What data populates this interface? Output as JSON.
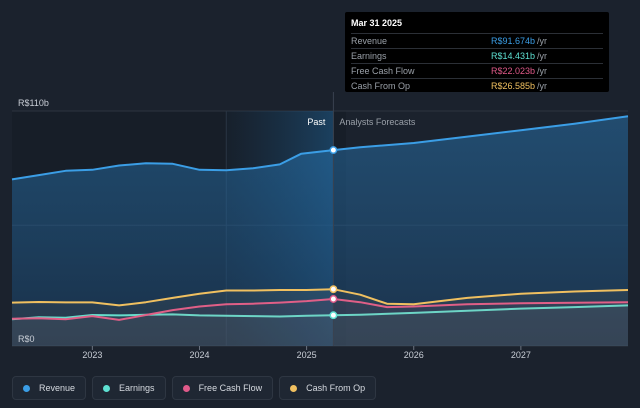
{
  "chart_data": {
    "type": "area",
    "currency_unit": "R$",
    "y_axis": {
      "min_label": "R$0",
      "max_label": "R$110b",
      "ylim": [
        0,
        110
      ]
    },
    "x_ticks": [
      "2023",
      "2024",
      "2025",
      "2026",
      "2027"
    ],
    "region_labels": {
      "past": "Past",
      "forecast": "Analysts Forecasts"
    },
    "divider_x": 2025.25,
    "highlight_band": [
      2024.25,
      2025.25
    ],
    "xlim": [
      2022.25,
      2028.0
    ],
    "series": [
      {
        "name": "Revenue",
        "color": "#3b9ee6",
        "fill": true,
        "points": [
          [
            2022.25,
            78
          ],
          [
            2022.5,
            80
          ],
          [
            2022.75,
            82
          ],
          [
            2023.0,
            82.5
          ],
          [
            2023.25,
            84.5
          ],
          [
            2023.5,
            85.5
          ],
          [
            2023.75,
            85.3
          ],
          [
            2024.0,
            82.5
          ],
          [
            2024.25,
            82.3
          ],
          [
            2024.5,
            83.2
          ],
          [
            2024.75,
            85
          ],
          [
            2024.95,
            90
          ],
          [
            2025.25,
            91.7
          ],
          [
            2025.5,
            93
          ],
          [
            2026.0,
            95
          ],
          [
            2026.5,
            98
          ],
          [
            2027.0,
            101
          ],
          [
            2027.5,
            104
          ],
          [
            2028.0,
            107.5
          ]
        ]
      },
      {
        "name": "Earnings",
        "color": "#5ee0d2",
        "fill": false,
        "points": [
          [
            2022.25,
            12.5
          ],
          [
            2022.5,
            13.5
          ],
          [
            2022.75,
            13.2
          ],
          [
            2023.0,
            14.5
          ],
          [
            2023.25,
            14.3
          ],
          [
            2023.5,
            14.6
          ],
          [
            2023.75,
            14.8
          ],
          [
            2024.0,
            14.3
          ],
          [
            2024.25,
            14.2
          ],
          [
            2024.5,
            14
          ],
          [
            2024.75,
            13.8
          ],
          [
            2025.0,
            14.2
          ],
          [
            2025.25,
            14.4
          ],
          [
            2025.5,
            14.6
          ],
          [
            2026.0,
            15.5
          ],
          [
            2026.5,
            16.5
          ],
          [
            2027.0,
            17.5
          ],
          [
            2027.5,
            18.2
          ],
          [
            2028.0,
            19
          ]
        ]
      },
      {
        "name": "Free Cash Flow",
        "color": "#e05a8a",
        "fill": false,
        "points": [
          [
            2022.25,
            12.8
          ],
          [
            2022.5,
            13
          ],
          [
            2022.75,
            12.5
          ],
          [
            2023.0,
            14
          ],
          [
            2023.25,
            12.2
          ],
          [
            2023.5,
            14.5
          ],
          [
            2023.75,
            16.8
          ],
          [
            2024.0,
            18.5
          ],
          [
            2024.25,
            19.5
          ],
          [
            2024.5,
            19.8
          ],
          [
            2024.75,
            20.3
          ],
          [
            2025.0,
            21
          ],
          [
            2025.25,
            22
          ],
          [
            2025.5,
            20.5
          ],
          [
            2025.75,
            18.2
          ],
          [
            2026.0,
            18.5
          ],
          [
            2026.5,
            19.5
          ],
          [
            2027.0,
            20
          ],
          [
            2027.5,
            20.2
          ],
          [
            2028.0,
            20.5
          ]
        ]
      },
      {
        "name": "Cash From Op",
        "color": "#f0c060",
        "fill": false,
        "points": [
          [
            2022.25,
            20.3
          ],
          [
            2022.5,
            20.6
          ],
          [
            2022.75,
            20.4
          ],
          [
            2023.0,
            20.4
          ],
          [
            2023.25,
            19
          ],
          [
            2023.5,
            20.5
          ],
          [
            2023.75,
            22.5
          ],
          [
            2024.0,
            24.5
          ],
          [
            2024.25,
            26
          ],
          [
            2024.5,
            26
          ],
          [
            2024.75,
            26.2
          ],
          [
            2025.0,
            26.2
          ],
          [
            2025.25,
            26.6
          ],
          [
            2025.5,
            24
          ],
          [
            2025.75,
            19.8
          ],
          [
            2026.0,
            19.5
          ],
          [
            2026.5,
            22.5
          ],
          [
            2027.0,
            24.5
          ],
          [
            2027.5,
            25.5
          ],
          [
            2028.0,
            26.2
          ]
        ]
      }
    ]
  },
  "tooltip": {
    "date": "Mar 31 2025",
    "rows": [
      {
        "label": "Revenue",
        "value": "R$91.674b",
        "unit": "/yr",
        "color": "#3b9ee6"
      },
      {
        "label": "Earnings",
        "value": "R$14.431b",
        "unit": "/yr",
        "color": "#5ee0d2"
      },
      {
        "label": "Free Cash Flow",
        "value": "R$22.023b",
        "unit": "/yr",
        "color": "#e05a8a"
      },
      {
        "label": "Cash From Op",
        "value": "R$26.585b",
        "unit": "/yr",
        "color": "#f0c060"
      }
    ]
  },
  "legend": [
    {
      "label": "Revenue",
      "color": "#3b9ee6"
    },
    {
      "label": "Earnings",
      "color": "#5ee0d2"
    },
    {
      "label": "Free Cash Flow",
      "color": "#e05a8a"
    },
    {
      "label": "Cash From Op",
      "color": "#f0c060"
    }
  ]
}
